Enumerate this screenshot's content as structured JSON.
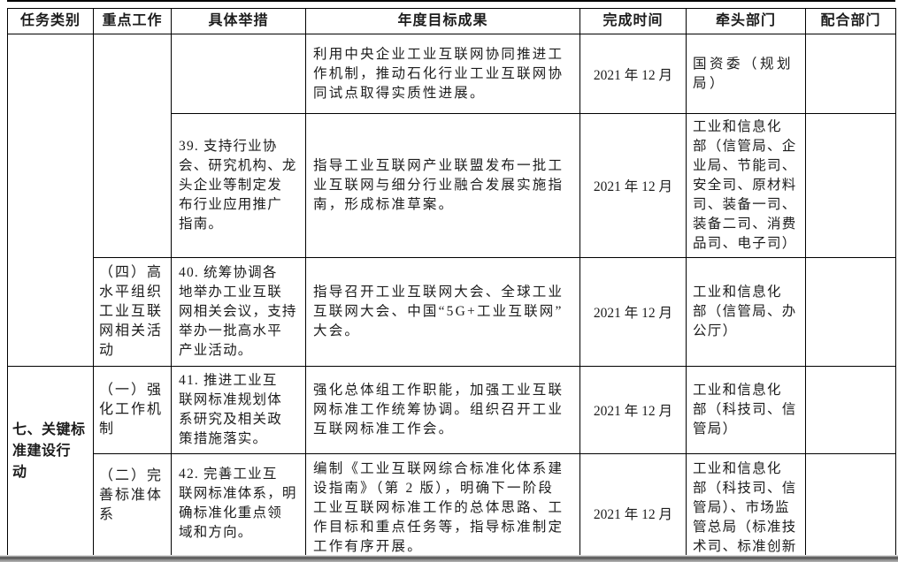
{
  "colors": {
    "border": "#000000",
    "text": "#1c1c1c",
    "page_cut_band": "#8c8c8c",
    "background": "#ffffff"
  },
  "table": {
    "header": {
      "task_category": "任务类别",
      "key_work": "重点工作",
      "specific_measures": "具体举措",
      "annual_target": "年度目标成果",
      "completion_time": "完成时间",
      "lead_department": "牵头部门",
      "support_department": "配合部门"
    },
    "rows": [
      {
        "task": "",
        "key_work": "",
        "measure": "",
        "target": "利用中央企业工业互联网协同推进工\n作机制，推动石化行业工业互联网协\n同试点取得实质性进展。",
        "time": "2021 年 12 月",
        "lead": "国资委（规划\n局）",
        "support": ""
      },
      {
        "measure": "39. 支持行业协\n会、研究机构、龙\n头企业等制定发\n布行业应用推广\n指南。",
        "target": "指导工业互联网产业联盟发布一批工\n业互联网与细分行业融合发展实施指\n南，形成标准草案。",
        "time": "2021 年 12 月",
        "lead": "工业和信息化\n部（信管局、企\n业局、节能司、\n安全司、原材料\n司、装备一司、\n装备二司、消费\n品司、电子司）",
        "support": ""
      },
      {
        "key_work": "（四）高\n水平组织\n工业互联\n网相关活\n动",
        "measure": "40. 统筹协调各\n地举办工业互联\n网相关会议，支持\n举办一批高水平\n产业活动。",
        "target": "指导召开工业互联网大会、全球工业\n互联网大会、中国“5G+工业互联网”\n大会。",
        "time": "2021 年 12 月",
        "lead": "工业和信息化\n部（信管局、办\n公厅）",
        "support": ""
      },
      {
        "task": "七、关键标\n准建设行\n动",
        "key_work": "（一）强\n化工作机\n制",
        "measure": "41. 推进工业互\n联网标准规划体\n系研究及相关政\n策措施落实。",
        "target": "强化总体组工作职能，加强工业互联\n网标准工作统筹协调。组织召开工业\n互联网标准工作会。",
        "time": "2021 年 12 月",
        "lead": "工业和信息化\n部（科技司、信\n管局）",
        "support": ""
      },
      {
        "key_work": "（二）完\n善标准体\n系",
        "measure": "42. 完善工业互\n联网标准体系，明\n确标准化重点领\n域和方向。",
        "target": "编制《工业互联网综合标准化体系建\n设指南》（第 2 版），明确下一阶段\n工业互联网标准工作的总体思路、工\n作目标和重点任务等，指导标准制定\n工作有序开展。",
        "time": "2021 年 12 月",
        "lead": "工业和信息化\n部（科技司、信\n管局）、市场监\n管总局（标准技\n术司、标准创新",
        "support": ""
      }
    ]
  }
}
